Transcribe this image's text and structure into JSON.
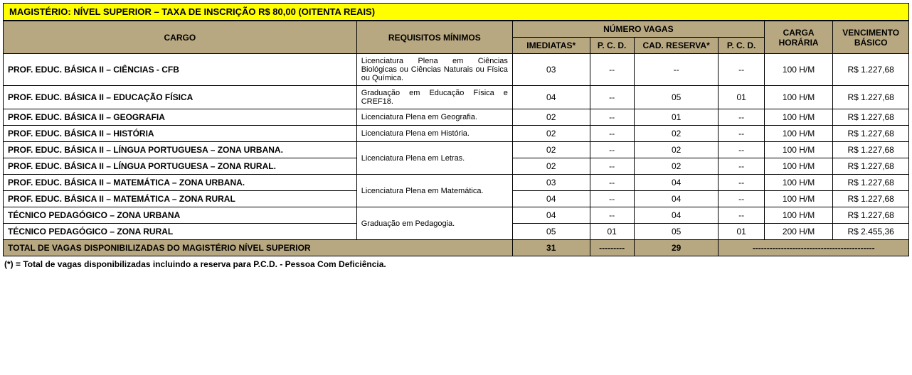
{
  "banner": "MAGISTÉRIO: NÍVEL SUPERIOR – TAXA DE INSCRIÇÃO R$ 80,00 (OITENTA REAIS)",
  "headers": {
    "cargo": "CARGO",
    "requisitos": "REQUISITOS MÍNIMOS",
    "numero_vagas": "NÚMERO VAGAS",
    "imediatas": "IMEDIATAS*",
    "pcd1": "P. C. D.",
    "cad_reserva": "CAD. RESERVA*",
    "pcd2": "P. C. D.",
    "carga_horaria": "CARGA HORÁRIA",
    "vencimento": "VENCIMENTO BÁSICO"
  },
  "rows": [
    {
      "cargo": "PROF. EDUC. BÁSICA II – CIÊNCIAS - CFB",
      "req": "Licenciatura Plena em Ciências Biológicas ou Ciências Naturais ou Física ou Química.",
      "imed": "03",
      "pcd1": "--",
      "cad": "--",
      "pcd2": "--",
      "ch": "100 H/M",
      "vb": "R$ 1.227,68"
    },
    {
      "cargo": "PROF. EDUC. BÁSICA II – EDUCAÇÃO FÍSICA",
      "req": "Graduação em Educação Física e CREF18.",
      "imed": "04",
      "pcd1": "--",
      "cad": "05",
      "pcd2": "01",
      "ch": "100 H/M",
      "vb": "R$ 1.227,68"
    },
    {
      "cargo": "PROF. EDUC. BÁSICA II – GEOGRAFIA",
      "req": "Licenciatura Plena em Geografia.",
      "imed": "02",
      "pcd1": "--",
      "cad": "01",
      "pcd2": "--",
      "ch": "100 H/M",
      "vb": "R$ 1.227,68"
    },
    {
      "cargo": "PROF. EDUC. BÁSICA II – HISTÓRIA",
      "req": "Licenciatura Plena em História.",
      "imed": "02",
      "pcd1": "--",
      "cad": "02",
      "pcd2": "--",
      "ch": "100 H/M",
      "vb": "R$ 1.227,68"
    },
    {
      "cargo": "PROF. EDUC. BÁSICA II – LÍNGUA PORTUGUESA – ZONA URBANA.",
      "req": "Licenciatura Plena em Letras.",
      "req_rowspan": 2,
      "imed": "02",
      "pcd1": "--",
      "cad": "02",
      "pcd2": "--",
      "ch": "100 H/M",
      "vb": "R$ 1.227,68"
    },
    {
      "cargo": "PROF. EDUC. BÁSICA II – LÍNGUA PORTUGUESA – ZONA RURAL.",
      "req_skip": true,
      "imed": "02",
      "pcd1": "--",
      "cad": "02",
      "pcd2": "--",
      "ch": "100 H/M",
      "vb": "R$ 1.227,68"
    },
    {
      "cargo": "PROF. EDUC. BÁSICA II – MATEMÁTICA – ZONA URBANA.",
      "req": "Licenciatura Plena em Matemática.",
      "req_rowspan": 2,
      "imed": "03",
      "pcd1": "--",
      "cad": "04",
      "pcd2": "--",
      "ch": "100 H/M",
      "vb": "R$ 1.227,68"
    },
    {
      "cargo": "PROF. EDUC. BÁSICA II – MATEMÁTICA – ZONA RURAL",
      "req_skip": true,
      "imed": "04",
      "pcd1": "--",
      "cad": "04",
      "pcd2": "--",
      "ch": "100 H/M",
      "vb": "R$ 1.227,68"
    },
    {
      "cargo": "TÉCNICO PEDAGÓGICO – ZONA URBANA",
      "req": "Graduação em Pedagogia.",
      "req_rowspan": 2,
      "imed": "04",
      "pcd1": "--",
      "cad": "04",
      "pcd2": "--",
      "ch": "100 H/M",
      "vb": "R$ 1.227,68"
    },
    {
      "cargo": "TÉCNICO PEDAGÓGICO – ZONA RURAL",
      "req_skip": true,
      "imed": "05",
      "pcd1": "01",
      "cad": "05",
      "pcd2": "01",
      "ch": "200 H/M",
      "vb": "R$ 2.455,36"
    }
  ],
  "total": {
    "label": "TOTAL DE VAGAS DISPONIBILIZADAS DO MAGISTÉRIO NÍVEL SUPERIOR",
    "imed": "31",
    "pcd1": "---------",
    "cad": "29",
    "rest": "-------------------------------------------"
  },
  "footnote": "(*) = Total de vagas disponibilizadas incluindo a reserva para P.C.D. - Pessoa Com Deficiência."
}
